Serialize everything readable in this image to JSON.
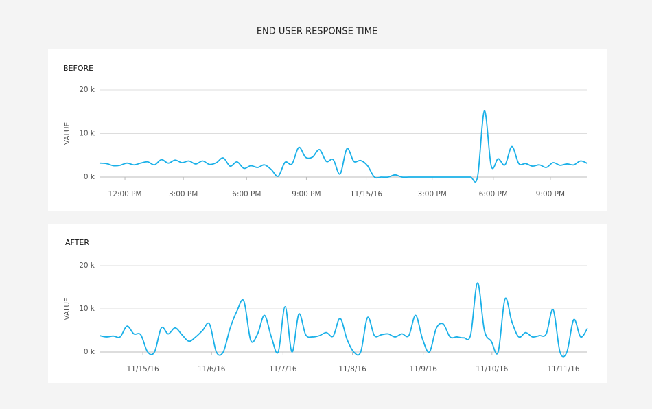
{
  "title": "END USER RESPONSE TIME",
  "chart_data": [
    {
      "type": "line",
      "title": "BEFORE",
      "ylabel": "VALUE",
      "color": "#1ab0e8",
      "grid": true,
      "x": [
        0,
        1,
        2,
        3,
        4,
        5,
        6,
        7,
        8,
        9,
        10,
        11,
        12,
        13,
        14,
        15,
        16,
        17,
        18,
        19,
        20,
        21,
        22,
        23,
        24,
        25,
        26,
        27,
        28,
        29,
        30,
        31,
        32,
        33,
        34,
        35,
        36,
        37,
        38,
        39,
        40,
        41,
        42,
        43,
        44,
        45,
        46,
        47,
        48,
        49,
        50,
        51,
        52,
        53,
        54,
        55,
        56,
        57,
        58,
        59,
        60,
        61,
        62,
        63,
        64,
        65,
        66,
        67,
        68,
        69,
        70,
        71
      ],
      "values": [
        3200,
        3100,
        2600,
        2700,
        3200,
        2800,
        3200,
        3500,
        2800,
        4000,
        3200,
        3900,
        3300,
        3700,
        3000,
        3700,
        2900,
        3300,
        4400,
        2500,
        3500,
        2000,
        2600,
        2200,
        2800,
        1700,
        200,
        3400,
        3000,
        6800,
        4500,
        4600,
        6300,
        3600,
        4000,
        700,
        6500,
        3600,
        3800,
        2600,
        0,
        0,
        0,
        500,
        0,
        0,
        0,
        0,
        0,
        0,
        0,
        0,
        0,
        0,
        0,
        0,
        15200,
        2500,
        4200,
        2800,
        7000,
        3100,
        3100,
        2500,
        2800,
        2200,
        3300,
        2700,
        3000,
        2800,
        3700,
        3100
      ],
      "xlim": [
        0,
        71
      ],
      "xticks": [
        {
          "value": 3.7,
          "label": "12:00 PM"
        },
        {
          "value": 12.2,
          "label": "3:00 PM"
        },
        {
          "value": 21.4,
          "label": "6:00 PM"
        },
        {
          "value": 30.1,
          "label": "9:00 PM"
        },
        {
          "value": 38.8,
          "label": "11/15/16"
        },
        {
          "value": 48.4,
          "label": "3:00 PM"
        },
        {
          "value": 57.3,
          "label": "6:00 PM"
        },
        {
          "value": 65.6,
          "label": "9:00 PM"
        }
      ],
      "ylim": [
        0,
        20000
      ],
      "yticks": [
        {
          "value": 0,
          "label": "0 k"
        },
        {
          "value": 10000,
          "label": "10 k"
        },
        {
          "value": 20000,
          "label": "20 k"
        }
      ]
    },
    {
      "type": "line",
      "title": "AFTER",
      "ylabel": "VALUE",
      "color": "#1ab0e8",
      "grid": true,
      "x": [
        0,
        1,
        2,
        3,
        4,
        5,
        6,
        7,
        8,
        9,
        10,
        11,
        12,
        13,
        14,
        15,
        16,
        17,
        18,
        19,
        20,
        21,
        22,
        23,
        24,
        25,
        26,
        27,
        28,
        29,
        30,
        31,
        32,
        33,
        34,
        35,
        36,
        37,
        38,
        39,
        40,
        41,
        42,
        43,
        44,
        45,
        46,
        47,
        48,
        49,
        50,
        51,
        52,
        53,
        54,
        55,
        56,
        57,
        58,
        59,
        60,
        61,
        62,
        63,
        64,
        65,
        66,
        67,
        68,
        69,
        70,
        71
      ],
      "values": [
        3800,
        3500,
        3700,
        3500,
        6000,
        4200,
        4000,
        0,
        0,
        5600,
        4200,
        5600,
        4000,
        2500,
        3500,
        5000,
        6500,
        0,
        0,
        5500,
        9500,
        11800,
        2700,
        4200,
        8500,
        3500,
        0,
        10500,
        0,
        8800,
        4000,
        3500,
        3800,
        4500,
        3700,
        7800,
        3000,
        0,
        0,
        8000,
        3800,
        4000,
        4200,
        3500,
        4200,
        3800,
        8500,
        3000,
        0,
        5500,
        6500,
        3500,
        3500,
        3300,
        4000,
        16000,
        5000,
        2500,
        0,
        12300,
        7000,
        3500,
        4500,
        3500,
        3800,
        4200,
        9800,
        0,
        0,
        7500,
        3500,
        5500
      ],
      "xlim": [
        0,
        71
      ],
      "xticks": [
        {
          "value": 6.3,
          "label": "11/15/16"
        },
        {
          "value": 16.3,
          "label": "11/6/16"
        },
        {
          "value": 26.7,
          "label": "11/7/16"
        },
        {
          "value": 36.8,
          "label": "11/8/16"
        },
        {
          "value": 47.1,
          "label": "11/9/16"
        },
        {
          "value": 57.1,
          "label": "11/10/16"
        },
        {
          "value": 67.5,
          "label": "11/11/16"
        }
      ],
      "ylim": [
        0,
        20000
      ],
      "yticks": [
        {
          "value": 0,
          "label": "0 k"
        },
        {
          "value": 10000,
          "label": "10 k"
        },
        {
          "value": 20000,
          "label": "20 k"
        }
      ]
    }
  ]
}
